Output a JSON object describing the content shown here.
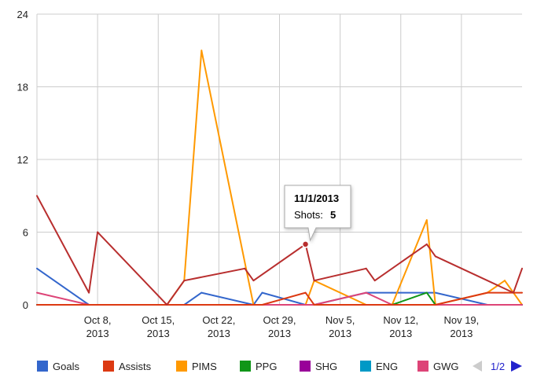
{
  "chart_data": {
    "type": "line",
    "ylim": [
      0,
      24
    ],
    "yticks": [
      0,
      6,
      12,
      18,
      24
    ],
    "xlim": [
      "2013-10-01",
      "2013-11-26"
    ],
    "xticks": [
      {
        "date": "2013-10-08",
        "line1": "Oct 8,",
        "line2": "2013"
      },
      {
        "date": "2013-10-15",
        "line1": "Oct 15,",
        "line2": "2013"
      },
      {
        "date": "2013-10-22",
        "line1": "Oct 22,",
        "line2": "2013"
      },
      {
        "date": "2013-10-29",
        "line1": "Oct 29,",
        "line2": "2013"
      },
      {
        "date": "2013-11-05",
        "line1": "Nov 5,",
        "line2": "2013"
      },
      {
        "date": "2013-11-12",
        "line1": "Nov 12,",
        "line2": "2013"
      },
      {
        "date": "2013-11-19",
        "line1": "Nov 19,",
        "line2": "2013"
      }
    ],
    "grid": true,
    "legend_position": "bottom",
    "series": [
      {
        "name": "Goals",
        "color": "#3366cc",
        "points": [
          [
            "2013-10-01",
            3
          ],
          [
            "2013-10-07",
            0
          ],
          [
            "2013-10-11",
            0
          ],
          [
            "2013-10-16",
            0
          ],
          [
            "2013-10-18",
            0
          ],
          [
            "2013-10-20",
            1
          ],
          [
            "2013-10-26",
            0
          ],
          [
            "2013-10-27",
            1
          ],
          [
            "2013-11-01",
            0
          ],
          [
            "2013-11-02",
            0
          ],
          [
            "2013-11-08",
            1
          ],
          [
            "2013-11-11",
            1
          ],
          [
            "2013-11-15",
            1
          ],
          [
            "2013-11-16",
            1
          ],
          [
            "2013-11-22",
            0
          ],
          [
            "2013-11-24",
            0
          ],
          [
            "2013-11-26",
            0
          ]
        ]
      },
      {
        "name": "PIMS",
        "color": "#ff9900",
        "points": [
          [
            "2013-10-01",
            0
          ],
          [
            "2013-10-07",
            0
          ],
          [
            "2013-10-11",
            0
          ],
          [
            "2013-10-16",
            0
          ],
          [
            "2013-10-18",
            2
          ],
          [
            "2013-10-20",
            21
          ],
          [
            "2013-10-26",
            0
          ],
          [
            "2013-10-27",
            0
          ],
          [
            "2013-11-01",
            0
          ],
          [
            "2013-11-02",
            2
          ],
          [
            "2013-11-08",
            0
          ],
          [
            "2013-11-11",
            0
          ],
          [
            "2013-11-15",
            7
          ],
          [
            "2013-11-16",
            0
          ],
          [
            "2013-11-22",
            1
          ],
          [
            "2013-11-24",
            2
          ],
          [
            "2013-11-26",
            0
          ]
        ]
      },
      {
        "name": "PPG",
        "color": "#109618",
        "points": [
          [
            "2013-10-01",
            0
          ],
          [
            "2013-10-07",
            0
          ],
          [
            "2013-10-11",
            0
          ],
          [
            "2013-10-16",
            0
          ],
          [
            "2013-10-18",
            0
          ],
          [
            "2013-10-20",
            0
          ],
          [
            "2013-10-26",
            0
          ],
          [
            "2013-10-27",
            0
          ],
          [
            "2013-11-01",
            0
          ],
          [
            "2013-11-02",
            0
          ],
          [
            "2013-11-08",
            0
          ],
          [
            "2013-11-11",
            0
          ],
          [
            "2013-11-15",
            1
          ],
          [
            "2013-11-16",
            0
          ],
          [
            "2013-11-22",
            0
          ],
          [
            "2013-11-24",
            0
          ],
          [
            "2013-11-26",
            0
          ]
        ]
      },
      {
        "name": "SHG",
        "color": "#990099",
        "points": [
          [
            "2013-10-01",
            0
          ],
          [
            "2013-10-26",
            0
          ],
          [
            "2013-11-26",
            0
          ]
        ]
      },
      {
        "name": "ENG",
        "color": "#0099c6",
        "points": [
          [
            "2013-10-01",
            0
          ],
          [
            "2013-10-26",
            0
          ],
          [
            "2013-11-26",
            0
          ]
        ]
      },
      {
        "name": "GWG",
        "color": "#dd4477",
        "points": [
          [
            "2013-10-01",
            1
          ],
          [
            "2013-10-07",
            0
          ],
          [
            "2013-10-11",
            0
          ],
          [
            "2013-10-16",
            0
          ],
          [
            "2013-10-18",
            0
          ],
          [
            "2013-10-20",
            0
          ],
          [
            "2013-10-26",
            0
          ],
          [
            "2013-10-27",
            0
          ],
          [
            "2013-11-01",
            0
          ],
          [
            "2013-11-02",
            0
          ],
          [
            "2013-11-08",
            1
          ],
          [
            "2013-11-11",
            0
          ],
          [
            "2013-11-15",
            0
          ],
          [
            "2013-11-16",
            0
          ],
          [
            "2013-11-22",
            0
          ],
          [
            "2013-11-24",
            0
          ],
          [
            "2013-11-26",
            0
          ]
        ]
      },
      {
        "name": "Assists",
        "color": "#dc3912",
        "points": [
          [
            "2013-10-01",
            0
          ],
          [
            "2013-10-07",
            0
          ],
          [
            "2013-10-11",
            0
          ],
          [
            "2013-10-16",
            0
          ],
          [
            "2013-10-18",
            0
          ],
          [
            "2013-10-20",
            0
          ],
          [
            "2013-10-26",
            0
          ],
          [
            "2013-10-27",
            0
          ],
          [
            "2013-11-01",
            1
          ],
          [
            "2013-11-02",
            0
          ],
          [
            "2013-11-08",
            0
          ],
          [
            "2013-11-11",
            0
          ],
          [
            "2013-11-15",
            0
          ],
          [
            "2013-11-16",
            0
          ],
          [
            "2013-11-22",
            1
          ],
          [
            "2013-11-24",
            1
          ],
          [
            "2013-11-26",
            1
          ]
        ]
      },
      {
        "name": "Shots",
        "color": "#b82e2e",
        "points": [
          [
            "2013-10-01",
            9
          ],
          [
            "2013-10-07",
            1
          ],
          [
            "2013-10-08",
            6
          ],
          [
            "2013-10-16",
            0
          ],
          [
            "2013-10-18",
            2
          ],
          [
            "2013-10-25",
            3
          ],
          [
            "2013-10-26",
            2
          ],
          [
            "2013-11-01",
            5
          ],
          [
            "2013-11-02",
            2
          ],
          [
            "2013-11-08",
            3
          ],
          [
            "2013-11-09",
            2
          ],
          [
            "2013-11-15",
            5
          ],
          [
            "2013-11-16",
            4
          ],
          [
            "2013-11-25",
            1
          ],
          [
            "2013-11-26",
            3
          ]
        ]
      }
    ],
    "legend": [
      {
        "name": "Goals",
        "color": "#3366cc"
      },
      {
        "name": "Assists",
        "color": "#dc3912"
      },
      {
        "name": "PIMS",
        "color": "#ff9900"
      },
      {
        "name": "PPG",
        "color": "#109618"
      },
      {
        "name": "SHG",
        "color": "#990099"
      },
      {
        "name": "ENG",
        "color": "#0099c6"
      },
      {
        "name": "GWG",
        "color": "#dd4477"
      }
    ],
    "tooltip": {
      "title": "11/1/2013",
      "label": "Shots:",
      "value": "5",
      "date": "2013-11-01",
      "y": 5
    },
    "pager": {
      "text": "1/2"
    }
  }
}
